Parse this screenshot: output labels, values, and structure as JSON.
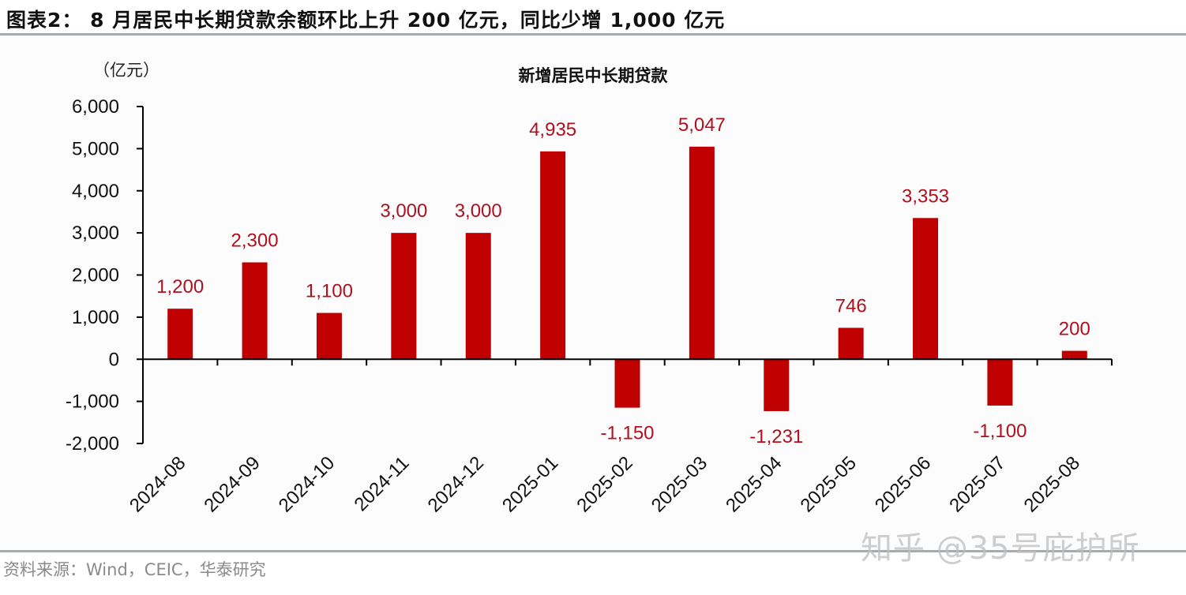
{
  "figure": {
    "title": "图表2： 8 月居民中长期贷款余额环比上升 200 亿元，同比少增 1,000 亿元",
    "source": "资料来源：Wind，CEIC，华泰研究",
    "watermark": "知乎 @35号庇护所"
  },
  "colors": {
    "bar": "#C00000",
    "data_label": "#B0101E",
    "axis": "#000000",
    "rule": "#A3ACB2",
    "source_text": "#8A8A8A"
  },
  "chart_data": {
    "type": "bar",
    "title": "新增居民中长期贷款",
    "unit_label": "（亿元）",
    "xlabel": "",
    "ylabel": "亿元",
    "categories": [
      "2024-08",
      "2024-09",
      "2024-10",
      "2024-11",
      "2024-12",
      "2025-01",
      "2025-02",
      "2025-03",
      "2025-04",
      "2025-05",
      "2025-06",
      "2025-07",
      "2025-08"
    ],
    "values": [
      1200,
      2300,
      1100,
      3000,
      3000,
      4935,
      -1150,
      5047,
      -1231,
      746,
      3353,
      -1100,
      200
    ],
    "data_labels": [
      "1,200",
      "2,300",
      "1,100",
      "3,000",
      "3,000",
      "4,935",
      "-1,150",
      "5,047",
      "-1,231",
      "746",
      "3,353",
      "-1,100",
      "200"
    ],
    "ylim": [
      -2000,
      6000
    ],
    "yticks": [
      6000,
      5000,
      4000,
      3000,
      2000,
      1000,
      0,
      -1000,
      -2000
    ],
    "ytick_labels": [
      "6,000",
      "5,000",
      "4,000",
      "3,000",
      "2,000",
      "1,000",
      "0",
      "-1,000",
      "-2,000"
    ],
    "grid": false,
    "legend": null,
    "x_label_rotation": -45
  }
}
